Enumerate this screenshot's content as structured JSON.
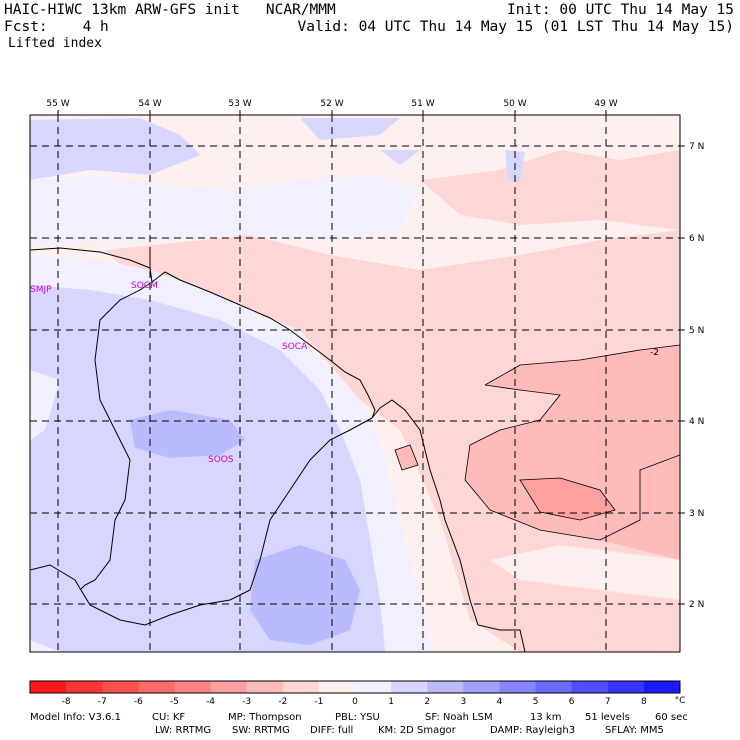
{
  "header": {
    "title": "HAIC-HIWC 13km ARW-GFS init   NCAR/MMM",
    "fcst": "Fcst:    4 h",
    "field": "Lifted index",
    "init": "Init: 00 UTC Thu 14 May 15",
    "valid": "Valid: 04 UTC Thu 14 May 15 (01 LST Thu 14 May 15)"
  },
  "map": {
    "lon_labels": [
      "55 W",
      "54 W",
      "53 W",
      "52 W",
      "51 W",
      "50 W",
      "49 W"
    ],
    "lat_labels": [
      "7 N",
      "6 N",
      "5 N",
      "4 N",
      "3 N",
      "2 N"
    ],
    "stations": [
      "SMJP",
      "SOCM",
      "SOCA",
      "SOOS"
    ],
    "contour_label": "-2"
  },
  "colorbar": {
    "ticks": [
      "-8",
      "-7",
      "-6",
      "-5",
      "-4",
      "-3",
      "-2",
      "-1",
      "0",
      "1",
      "2",
      "3",
      "4",
      "5",
      "6",
      "7",
      "8"
    ],
    "unit": "°C",
    "colors": [
      "#ff1a1a",
      "#ff3535",
      "#ff5050",
      "#ff6a6a",
      "#ff8585",
      "#ffa0a0",
      "#ffbaba",
      "#ffd6d6",
      "#fff0f0",
      "#f0f0ff",
      "#d6d6ff",
      "#babaff",
      "#a0a0ff",
      "#8585ff",
      "#6a6aff",
      "#5050ff",
      "#3535ff",
      "#1a1aff"
    ]
  },
  "footer": {
    "line1": [
      "Model Info: V3.6.1",
      "CU: KF",
      "MP: Thompson",
      "PBL: YSU",
      "SF: Noah LSM",
      "13 km",
      "51 levels",
      "60 sec"
    ],
    "line2": [
      "LW: RRTMG",
      "SW: RRTMG",
      "DIFF: full",
      "KM: 2D Smagor",
      "DAMP: Rayleigh3",
      "SFLAY: MM5"
    ]
  }
}
